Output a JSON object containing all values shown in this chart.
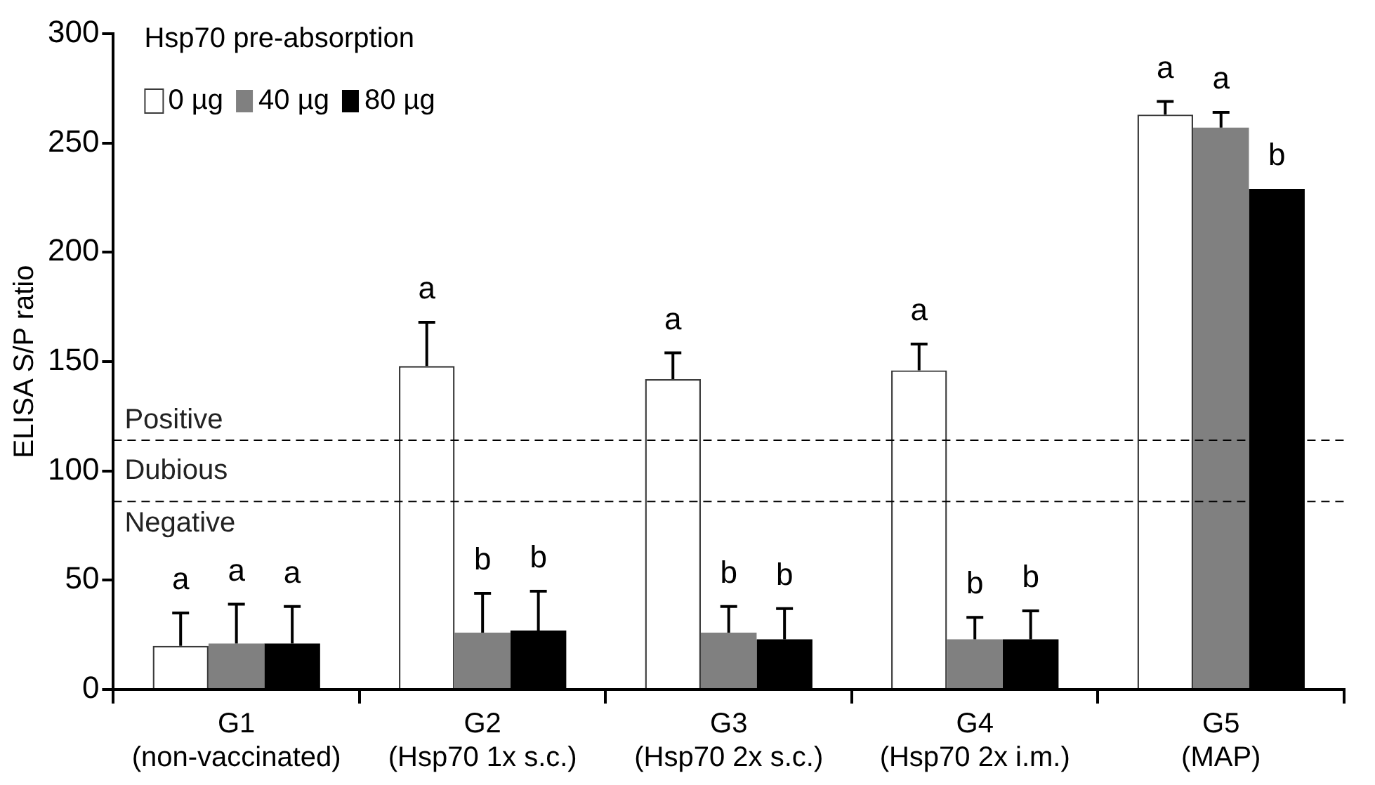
{
  "chart_data": {
    "type": "bar",
    "ylabel": "ELISA S/P ratio",
    "legend_title": "Hsp70 pre-absorption",
    "legend": "top left",
    "categories": [
      "G1\n(non-vaccinated)",
      "G2\n(Hsp70 1x s.c.)",
      "G3\n(Hsp70 2x s.c.)",
      "G4\n(Hsp70 2x i.m.)",
      "G5\n(MAP)"
    ],
    "series": [
      {
        "name": "0 µg",
        "color": "#ffffff",
        "values": [
          20,
          148,
          142,
          146,
          263
        ],
        "errors": [
          [
            20,
            35
          ],
          [
            148,
            168
          ],
          [
            142,
            154
          ],
          [
            146,
            158
          ],
          [
            263,
            269
          ]
        ],
        "value_labels": [
          "a",
          "a",
          "a",
          "a",
          "a"
        ]
      },
      {
        "name": "40 µg",
        "color": "#808080",
        "values": [
          21,
          26,
          26,
          23,
          257
        ],
        "errors": [
          [
            21,
            39
          ],
          [
            26,
            44
          ],
          [
            26,
            38
          ],
          [
            23,
            33
          ],
          [
            257,
            264
          ]
        ],
        "value_labels": [
          "a",
          "b",
          "b",
          "b",
          "a"
        ]
      },
      {
        "name": "80 µg",
        "color": "#000000",
        "values": [
          21,
          27,
          23,
          23,
          229
        ],
        "errors": [
          [
            21,
            38
          ],
          [
            27,
            45
          ],
          [
            23,
            37
          ],
          [
            23,
            36
          ],
          null
        ],
        "value_labels": [
          "a",
          "b",
          "b",
          "b",
          "b"
        ]
      }
    ],
    "ylim": [
      0,
      300
    ],
    "yticks": [
      0,
      50,
      100,
      150,
      200,
      250,
      300
    ],
    "grid": false,
    "ref_lines": [
      {
        "axis": "y",
        "value": 114,
        "label": "Positive",
        "color": "#000000",
        "line_style": "dashed"
      },
      {
        "axis": "y",
        "value": 86,
        "label": "Negative",
        "color": "#000000",
        "line_style": "dashed"
      }
    ],
    "annotations": [
      "Dubious"
    ]
  }
}
